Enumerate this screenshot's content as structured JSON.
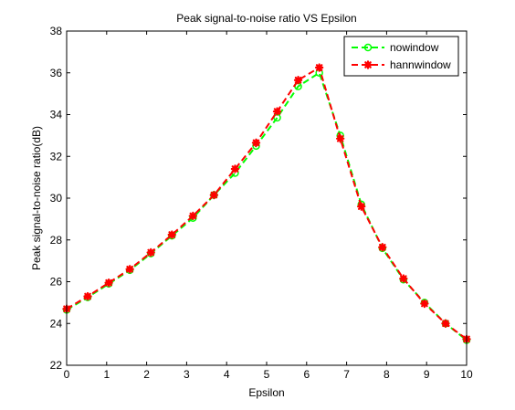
{
  "chart_data": {
    "type": "line",
    "title": "Peak signal-to-noise ratio VS Epsilon",
    "xlabel": "Epsilon",
    "ylabel": "Peak signal-to-noise ratio(dB)",
    "xlim": [
      0,
      10
    ],
    "ylim": [
      22,
      38
    ],
    "xticks": [
      "0",
      "1",
      "2",
      "3",
      "4",
      "5",
      "6",
      "7",
      "8",
      "9",
      "10"
    ],
    "yticks": [
      "22",
      "24",
      "26",
      "28",
      "30",
      "32",
      "34",
      "36",
      "38"
    ],
    "grid": false,
    "legend_position": "top-right",
    "x": [
      0,
      0.526,
      1.053,
      1.579,
      2.105,
      2.632,
      3.158,
      3.684,
      4.211,
      4.737,
      5.263,
      5.789,
      6.316,
      6.842,
      7.368,
      7.895,
      8.421,
      8.947,
      9.474,
      10
    ],
    "series": [
      {
        "name": "nowindow",
        "color": "#00ff00",
        "marker": "circle",
        "line_style": "dashed",
        "values": [
          24.65,
          25.25,
          25.9,
          26.55,
          27.35,
          28.2,
          29.05,
          30.15,
          31.2,
          32.5,
          33.85,
          35.35,
          36.0,
          33.0,
          29.7,
          27.6,
          26.1,
          25.0,
          24.0,
          23.2
        ]
      },
      {
        "name": "hannwindow",
        "color": "#ff0000",
        "marker": "star",
        "line_style": "dashed",
        "values": [
          24.7,
          25.3,
          25.95,
          26.6,
          27.4,
          28.25,
          29.15,
          30.15,
          31.4,
          32.65,
          34.15,
          35.65,
          36.25,
          32.85,
          29.6,
          27.65,
          26.15,
          24.95,
          24.0,
          23.25
        ]
      }
    ]
  }
}
